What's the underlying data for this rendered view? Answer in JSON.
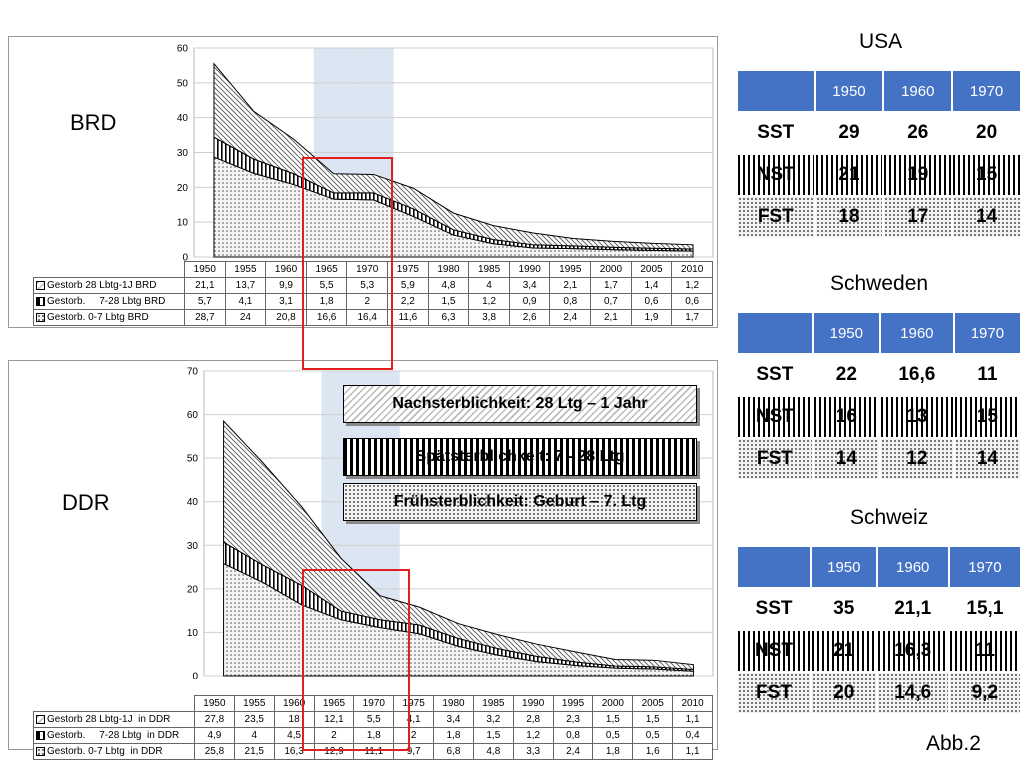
{
  "chart_data": [
    {
      "type": "area",
      "label": "BRD",
      "ylim": [
        0,
        60
      ],
      "yticks": [
        0,
        10,
        20,
        30,
        40,
        50,
        60
      ],
      "categories": [
        "1950",
        "1955",
        "1960",
        "1965",
        "1970",
        "1975",
        "1980",
        "1985",
        "1990",
        "1995",
        "2000",
        "2005",
        "2010"
      ],
      "series": [
        {
          "name": "Gestorb 28 Lbtg-1J BRD",
          "values": [
            21.1,
            13.7,
            9.9,
            5.5,
            5.3,
            5.9,
            4.8,
            4,
            3.4,
            2.1,
            1.7,
            1.4,
            1.2
          ],
          "display": [
            "21,1",
            "13,7",
            "9,9",
            "5,5",
            "5,3",
            "5,9",
            "4,8",
            "4",
            "3,4",
            "2,1",
            "1,7",
            "1,4",
            "1,2"
          ]
        },
        {
          "name": "Gestorb.     7-28 Lbtg BRD",
          "values": [
            5.7,
            4.1,
            3.1,
            1.8,
            2,
            2.2,
            1.5,
            1.2,
            0.9,
            0.8,
            0.7,
            0.6,
            0.6
          ],
          "display": [
            "5,7",
            "4,1",
            "3,1",
            "1,8",
            "2",
            "2,2",
            "1,5",
            "1,2",
            "0,9",
            "0,8",
            "0,7",
            "0,6",
            "0,6"
          ]
        },
        {
          "name": "Gestorb. 0-7 Lbtg BRD",
          "values": [
            28.7,
            24,
            20.8,
            16.6,
            16.4,
            11.6,
            6.3,
            3.8,
            2.6,
            2.4,
            2.1,
            1.9,
            1.7
          ],
          "display": [
            "28,7",
            "24",
            "20,8",
            "16,6",
            "16,4",
            "11,6",
            "6,3",
            "3,8",
            "2,6",
            "2,4",
            "2,1",
            "1,9",
            "1,7"
          ]
        }
      ]
    },
    {
      "type": "area",
      "label": "DDR",
      "ylim": [
        0,
        70
      ],
      "yticks": [
        0,
        10,
        20,
        30,
        40,
        50,
        60,
        70
      ],
      "categories": [
        "1950",
        "1955",
        "1960",
        "1965",
        "1970",
        "1975",
        "1980",
        "1985",
        "1990",
        "1995",
        "2000",
        "2005",
        "2010"
      ],
      "series": [
        {
          "name": "Gestorb 28 Lbtg-1J  in DDR",
          "values": [
            27.8,
            23.5,
            18,
            12.1,
            5.5,
            4.1,
            3.4,
            3.2,
            2.8,
            2.3,
            1.5,
            1.5,
            1.1
          ],
          "display": [
            "27,8",
            "23,5",
            "18",
            "12,1",
            "5,5",
            "4,1",
            "3,4",
            "3,2",
            "2,8",
            "2,3",
            "1,5",
            "1,5",
            "1,1"
          ]
        },
        {
          "name": "Gestorb.     7-28 Lbtg  in DDR",
          "values": [
            4.9,
            4,
            4.5,
            2,
            1.8,
            2,
            1.8,
            1.5,
            1.2,
            0.8,
            0.5,
            0.5,
            0.4
          ],
          "display": [
            "4,9",
            "4",
            "4,5",
            "2",
            "1,8",
            "2",
            "1,8",
            "1,5",
            "1,2",
            "0,8",
            "0,5",
            "0,5",
            "0,4"
          ]
        },
        {
          "name": "Gestorb. 0-7 Lbtg  in DDR",
          "values": [
            25.8,
            21.5,
            16.3,
            12.9,
            11.1,
            9.7,
            6.8,
            4.8,
            3.3,
            2.4,
            1.8,
            1.6,
            1.1
          ],
          "display": [
            "25,8",
            "21,5",
            "16,3",
            "12,9",
            "11,1",
            "9,7",
            "6,8",
            "4,8",
            "3,3",
            "2,4",
            "1,8",
            "1,6",
            "1,1"
          ]
        }
      ]
    }
  ],
  "legend_boxes": {
    "nachsterblichkeit": "Nachsterblichkeit: 28 Ltg – 1 Jahr",
    "spaetsterblichkeit": "Spätsterblichkeit: 7 - 28 Ltg",
    "fruehsterblichkeit": "Frühsterblichkeit: Geburt  –  7. Ltg"
  },
  "country_tables": [
    {
      "title": "USA",
      "years": [
        "1950",
        "1960",
        "1970"
      ],
      "rows": [
        {
          "label": "SST",
          "values": [
            "29",
            "26",
            "20"
          ]
        },
        {
          "label": "NST",
          "values": [
            "21",
            "19",
            "15"
          ]
        },
        {
          "label": "FST",
          "values": [
            "18",
            "17",
            "14"
          ]
        }
      ]
    },
    {
      "title": "Schweden",
      "years": [
        "1950",
        "1960",
        "1970"
      ],
      "rows": [
        {
          "label": "SST",
          "values": [
            "22",
            "16,6",
            "11"
          ]
        },
        {
          "label": "NST",
          "values": [
            "16",
            "13",
            "15"
          ]
        },
        {
          "label": "FST",
          "values": [
            "14",
            "12",
            "14"
          ]
        }
      ]
    },
    {
      "title": "Schweiz",
      "years": [
        "1950",
        "1960",
        "1970"
      ],
      "rows": [
        {
          "label": "SST",
          "values": [
            "35",
            "21,1",
            "15,1"
          ]
        },
        {
          "label": "NST",
          "values": [
            "21",
            "16,3",
            "11"
          ]
        },
        {
          "label": "FST",
          "values": [
            "20",
            "14,6",
            "9,2"
          ]
        }
      ]
    }
  ],
  "figure_label": "Abb.2",
  "colors": {
    "header_blue": "#4472c4",
    "highlight_red": "#e02020",
    "highlight_fill": "#dce6f2"
  }
}
